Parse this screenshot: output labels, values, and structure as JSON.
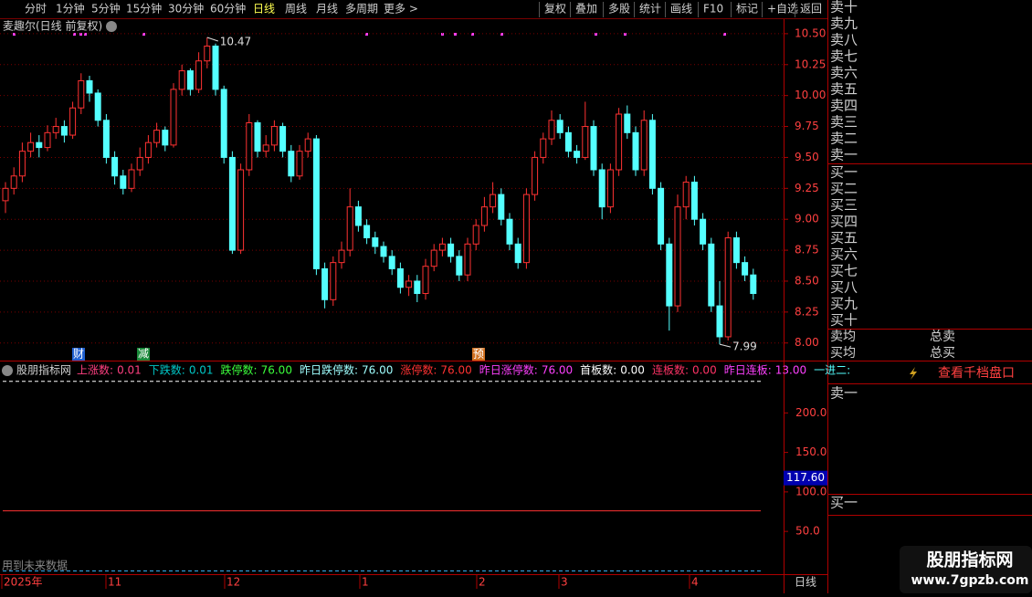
{
  "toolbar": {
    "periods": [
      "分时",
      "1分钟",
      "5分钟",
      "15分钟",
      "30分钟",
      "60分钟",
      "日线",
      "周线",
      "月线",
      "多周期",
      "更多 >"
    ],
    "active_period_index": 6,
    "buttons": [
      "复权",
      "叠加",
      "多股",
      "统计",
      "画线",
      "F10",
      "标记",
      "+自选",
      "返回"
    ]
  },
  "price_chart": {
    "title": "麦趣尔(日线 前复权)",
    "ylim": [
      7.88,
      10.61
    ],
    "yticks": [
      {
        "value": 10.5,
        "label": "10.50"
      },
      {
        "value": 10.25,
        "label": "10.25"
      },
      {
        "value": 10,
        "label": "10.00"
      },
      {
        "value": 9.75,
        "label": "9.75"
      },
      {
        "value": 9.5,
        "label": "9.50"
      },
      {
        "value": 9.25,
        "label": "9.25"
      },
      {
        "value": 9,
        "label": "9.00"
      },
      {
        "value": 8.75,
        "label": "8.75"
      },
      {
        "value": 8.5,
        "label": "8.50"
      },
      {
        "value": 8.25,
        "label": "8.25"
      },
      {
        "value": 8,
        "label": "8.00"
      }
    ],
    "up_color": "#ff3232",
    "down_color": "#54ffff",
    "candles": [
      [
        9.15,
        9.3,
        9.05,
        9.25
      ],
      [
        9.25,
        9.42,
        9.2,
        9.35
      ],
      [
        9.35,
        9.62,
        9.3,
        9.55
      ],
      [
        9.55,
        9.7,
        9.5,
        9.62
      ],
      [
        9.62,
        9.68,
        9.5,
        9.58
      ],
      [
        9.58,
        9.76,
        9.55,
        9.7
      ],
      [
        9.7,
        9.82,
        9.65,
        9.75
      ],
      [
        9.75,
        9.8,
        9.62,
        9.68
      ],
      [
        9.68,
        9.95,
        9.65,
        9.9
      ],
      [
        9.9,
        10.18,
        9.85,
        10.12
      ],
      [
        10.12,
        10.16,
        9.95,
        10.02
      ],
      [
        10.02,
        10.05,
        9.75,
        9.8
      ],
      [
        9.8,
        9.85,
        9.45,
        9.5
      ],
      [
        9.5,
        9.55,
        9.28,
        9.35
      ],
      [
        9.35,
        9.4,
        9.2,
        9.25
      ],
      [
        9.25,
        9.45,
        9.22,
        9.4
      ],
      [
        9.4,
        9.58,
        9.35,
        9.5
      ],
      [
        9.5,
        9.68,
        9.45,
        9.62
      ],
      [
        9.62,
        9.78,
        9.58,
        9.72
      ],
      [
        9.72,
        9.75,
        9.55,
        9.6
      ],
      [
        9.6,
        10.1,
        9.58,
        10.05
      ],
      [
        10.05,
        10.25,
        10.0,
        10.2
      ],
      [
        10.2,
        10.22,
        10.0,
        10.05
      ],
      [
        10.05,
        10.35,
        10.02,
        10.28
      ],
      [
        10.28,
        10.47,
        10.22,
        10.4
      ],
      [
        10.4,
        10.42,
        10.0,
        10.05
      ],
      [
        10.05,
        10.08,
        9.45,
        9.5
      ],
      [
        9.5,
        9.55,
        8.72,
        8.75
      ],
      [
        8.75,
        9.45,
        8.72,
        9.4
      ],
      [
        9.4,
        9.85,
        9.35,
        9.78
      ],
      [
        9.78,
        9.8,
        9.5,
        9.55
      ],
      [
        9.55,
        9.68,
        9.5,
        9.6
      ],
      [
        9.6,
        9.8,
        9.55,
        9.75
      ],
      [
        9.75,
        9.78,
        9.5,
        9.55
      ],
      [
        9.55,
        9.6,
        9.3,
        9.35
      ],
      [
        9.35,
        9.6,
        9.32,
        9.55
      ],
      [
        9.55,
        9.7,
        9.5,
        9.65
      ],
      [
        9.65,
        9.68,
        8.55,
        8.6
      ],
      [
        8.6,
        8.65,
        8.28,
        8.35
      ],
      [
        8.35,
        8.7,
        8.3,
        8.65
      ],
      [
        8.65,
        8.82,
        8.6,
        8.75
      ],
      [
        8.75,
        9.25,
        8.7,
        9.1
      ],
      [
        9.1,
        9.15,
        8.9,
        8.95
      ],
      [
        8.95,
        9.0,
        8.8,
        8.85
      ],
      [
        8.85,
        8.9,
        8.72,
        8.78
      ],
      [
        8.78,
        8.82,
        8.65,
        8.7
      ],
      [
        8.7,
        8.75,
        8.55,
        8.6
      ],
      [
        8.6,
        8.65,
        8.4,
        8.45
      ],
      [
        8.45,
        8.55,
        8.38,
        8.5
      ],
      [
        8.5,
        8.55,
        8.33,
        8.4
      ],
      [
        8.4,
        8.68,
        8.35,
        8.62
      ],
      [
        8.62,
        8.8,
        8.58,
        8.75
      ],
      [
        8.75,
        8.85,
        8.7,
        8.8
      ],
      [
        8.8,
        8.85,
        8.65,
        8.7
      ],
      [
        8.7,
        8.75,
        8.5,
        8.55
      ],
      [
        8.55,
        8.85,
        8.5,
        8.8
      ],
      [
        8.8,
        9.0,
        8.75,
        8.95
      ],
      [
        8.95,
        9.18,
        8.9,
        9.1
      ],
      [
        9.1,
        9.3,
        9.05,
        9.2
      ],
      [
        9.2,
        9.25,
        8.95,
        9.0
      ],
      [
        9.0,
        9.05,
        8.75,
        8.8
      ],
      [
        8.8,
        8.85,
        8.6,
        8.65
      ],
      [
        8.65,
        9.25,
        8.6,
        9.2
      ],
      [
        9.2,
        9.55,
        9.15,
        9.5
      ],
      [
        9.5,
        9.7,
        9.45,
        9.65
      ],
      [
        9.65,
        9.88,
        9.6,
        9.8
      ],
      [
        9.8,
        9.85,
        9.65,
        9.7
      ],
      [
        9.7,
        9.75,
        9.5,
        9.55
      ],
      [
        9.55,
        9.6,
        9.45,
        9.5
      ],
      [
        9.5,
        9.95,
        9.48,
        9.75
      ],
      [
        9.75,
        9.8,
        9.35,
        9.4
      ],
      [
        9.4,
        9.45,
        9.0,
        9.1
      ],
      [
        9.1,
        9.45,
        9.05,
        9.4
      ],
      [
        9.4,
        9.9,
        9.35,
        9.85
      ],
      [
        9.85,
        9.92,
        9.65,
        9.7
      ],
      [
        9.7,
        9.75,
        9.35,
        9.4
      ],
      [
        9.4,
        9.88,
        9.35,
        9.8
      ],
      [
        9.8,
        9.85,
        9.2,
        9.25
      ],
      [
        9.25,
        9.3,
        8.75,
        8.8
      ],
      [
        8.8,
        8.85,
        8.1,
        8.3
      ],
      [
        8.3,
        9.2,
        8.25,
        9.1
      ],
      [
        9.1,
        9.35,
        9.0,
        9.3
      ],
      [
        9.3,
        9.35,
        8.95,
        9.0
      ],
      [
        9.0,
        9.05,
        8.75,
        8.8
      ],
      [
        8.8,
        8.85,
        8.25,
        8.3
      ],
      [
        8.3,
        8.5,
        7.99,
        8.05
      ],
      [
        8.05,
        8.9,
        8.02,
        8.85
      ],
      [
        8.85,
        8.9,
        8.6,
        8.65
      ],
      [
        8.65,
        8.7,
        8.5,
        8.55
      ],
      [
        8.55,
        8.6,
        8.35,
        8.4
      ]
    ],
    "markers": [
      {
        "text": "财",
        "color": "#1f5fd0"
      },
      {
        "text": "减",
        "color": "#1a8a3a"
      },
      {
        "text": "预",
        "color": "#d07020"
      }
    ]
  },
  "indicator": {
    "name": "股朋指标网",
    "items": [
      {
        "name": "上涨数:",
        "value": "0.01",
        "color": "#ff4080"
      },
      {
        "name": "下跌数:",
        "value": "0.01",
        "color": "#00c8c8"
      },
      {
        "name": "跌停数:",
        "value": "76.00",
        "color": "#3cff3c"
      },
      {
        "name": "昨日跌停数:",
        "value": "76.00",
        "color": "#a0ffff"
      },
      {
        "name": "涨停数:",
        "value": "76.00",
        "color": "#ff3232"
      },
      {
        "name": "昨日涨停数:",
        "value": "76.00",
        "color": "#ff40ff"
      },
      {
        "name": "首板数:",
        "value": "0.00",
        "color": "#ffffff"
      },
      {
        "name": "连板数:",
        "value": "0.00",
        "color": "#ff3366"
      },
      {
        "name": "昨日连板:",
        "value": "13.00",
        "color": "#ff40ff"
      },
      {
        "name": "一进二:",
        "value": "",
        "color": "#54ffff"
      }
    ],
    "ylim": [
      -3,
      242
    ],
    "yticks": [
      {
        "value": 200,
        "label": "200.0"
      },
      {
        "value": 150,
        "label": "150.0"
      },
      {
        "value": 100,
        "label": "100.0"
      },
      {
        "value": 50,
        "label": "50.0"
      }
    ],
    "current": {
      "value": 117.6,
      "label": "117.60"
    },
    "lines": [
      {
        "value": 240,
        "color": "#ffffff",
        "dashed": true
      },
      {
        "value": 76,
        "color": "#ff3232",
        "dashed": false
      },
      {
        "value": 0,
        "color": "#3cb8ff",
        "dashed": true
      }
    ],
    "note": "用到未来数据"
  },
  "date_axis": {
    "labels": [
      "2025年",
      "11",
      "12",
      "1",
      "2",
      "3",
      "4"
    ],
    "period": "日线"
  },
  "order_book": {
    "sell": [
      "卖十",
      "卖九",
      "卖八",
      "卖七",
      "卖六",
      "卖五",
      "卖四",
      "卖三",
      "卖二",
      "卖一"
    ],
    "buy": [
      "买一",
      "买二",
      "买三",
      "买四",
      "买五",
      "买六",
      "买七",
      "买八",
      "买九",
      "买十"
    ],
    "avg_sell": "卖均",
    "avg_buy": "买均",
    "total_sell": "总卖",
    "total_buy": "总买",
    "depth_link": "查看千档盘口",
    "level_sell": "卖一",
    "level_buy": "买一"
  },
  "watermark": {
    "title": "股朋指标网",
    "url": "www.7gpzb.com"
  }
}
